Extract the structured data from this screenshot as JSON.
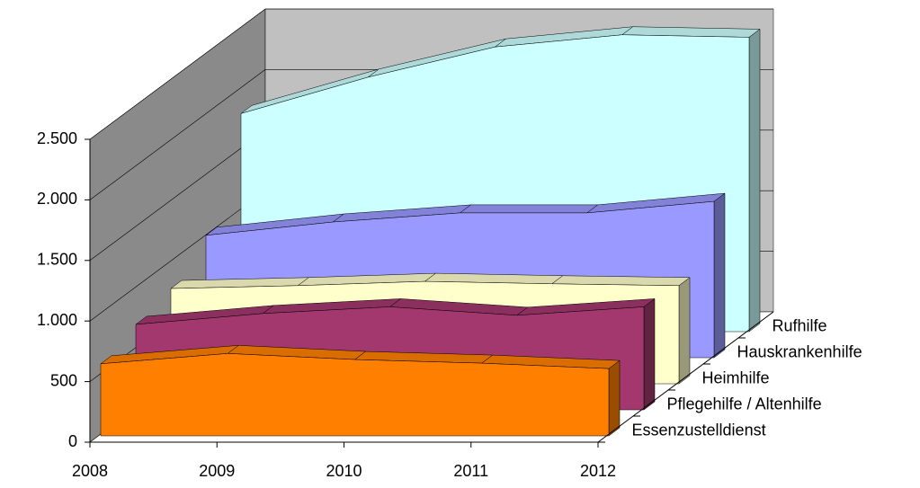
{
  "chart_data": {
    "type": "area3d",
    "categories": [
      "2008",
      "2009",
      "2010",
      "2011",
      "2012"
    ],
    "ylim": [
      0,
      2500
    ],
    "yticks": [
      0,
      500,
      {
        "value": 1000,
        "label": "1.000"
      },
      {
        "value": 1500,
        "label": "1.500"
      },
      {
        "value": 2000,
        "label": "2.000"
      },
      {
        "value": 2500,
        "label": "2.500"
      }
    ],
    "grid": true,
    "series": [
      {
        "name": "Essenzustelldienst",
        "color": "#ff8000",
        "values": [
          595,
          680,
          630,
          600,
          555
        ]
      },
      {
        "name": "Pflegehilfe / Altenhilfe",
        "color": "#a3386e",
        "values": [
          705,
          795,
          850,
          780,
          850
        ]
      },
      {
        "name": "Heimhilfe",
        "color": "#ffffcc",
        "values": [
          786,
          810,
          845,
          825,
          810
        ]
      },
      {
        "name": "Hauskrankenhilfe",
        "color": "#9999ff",
        "values": [
          1010,
          1120,
          1195,
          1195,
          1290
        ]
      },
      {
        "name": "Rufhilfe",
        "color": "#ccffff",
        "values": [
          1800,
          2100,
          2350,
          2450,
          2430
        ]
      }
    ]
  }
}
